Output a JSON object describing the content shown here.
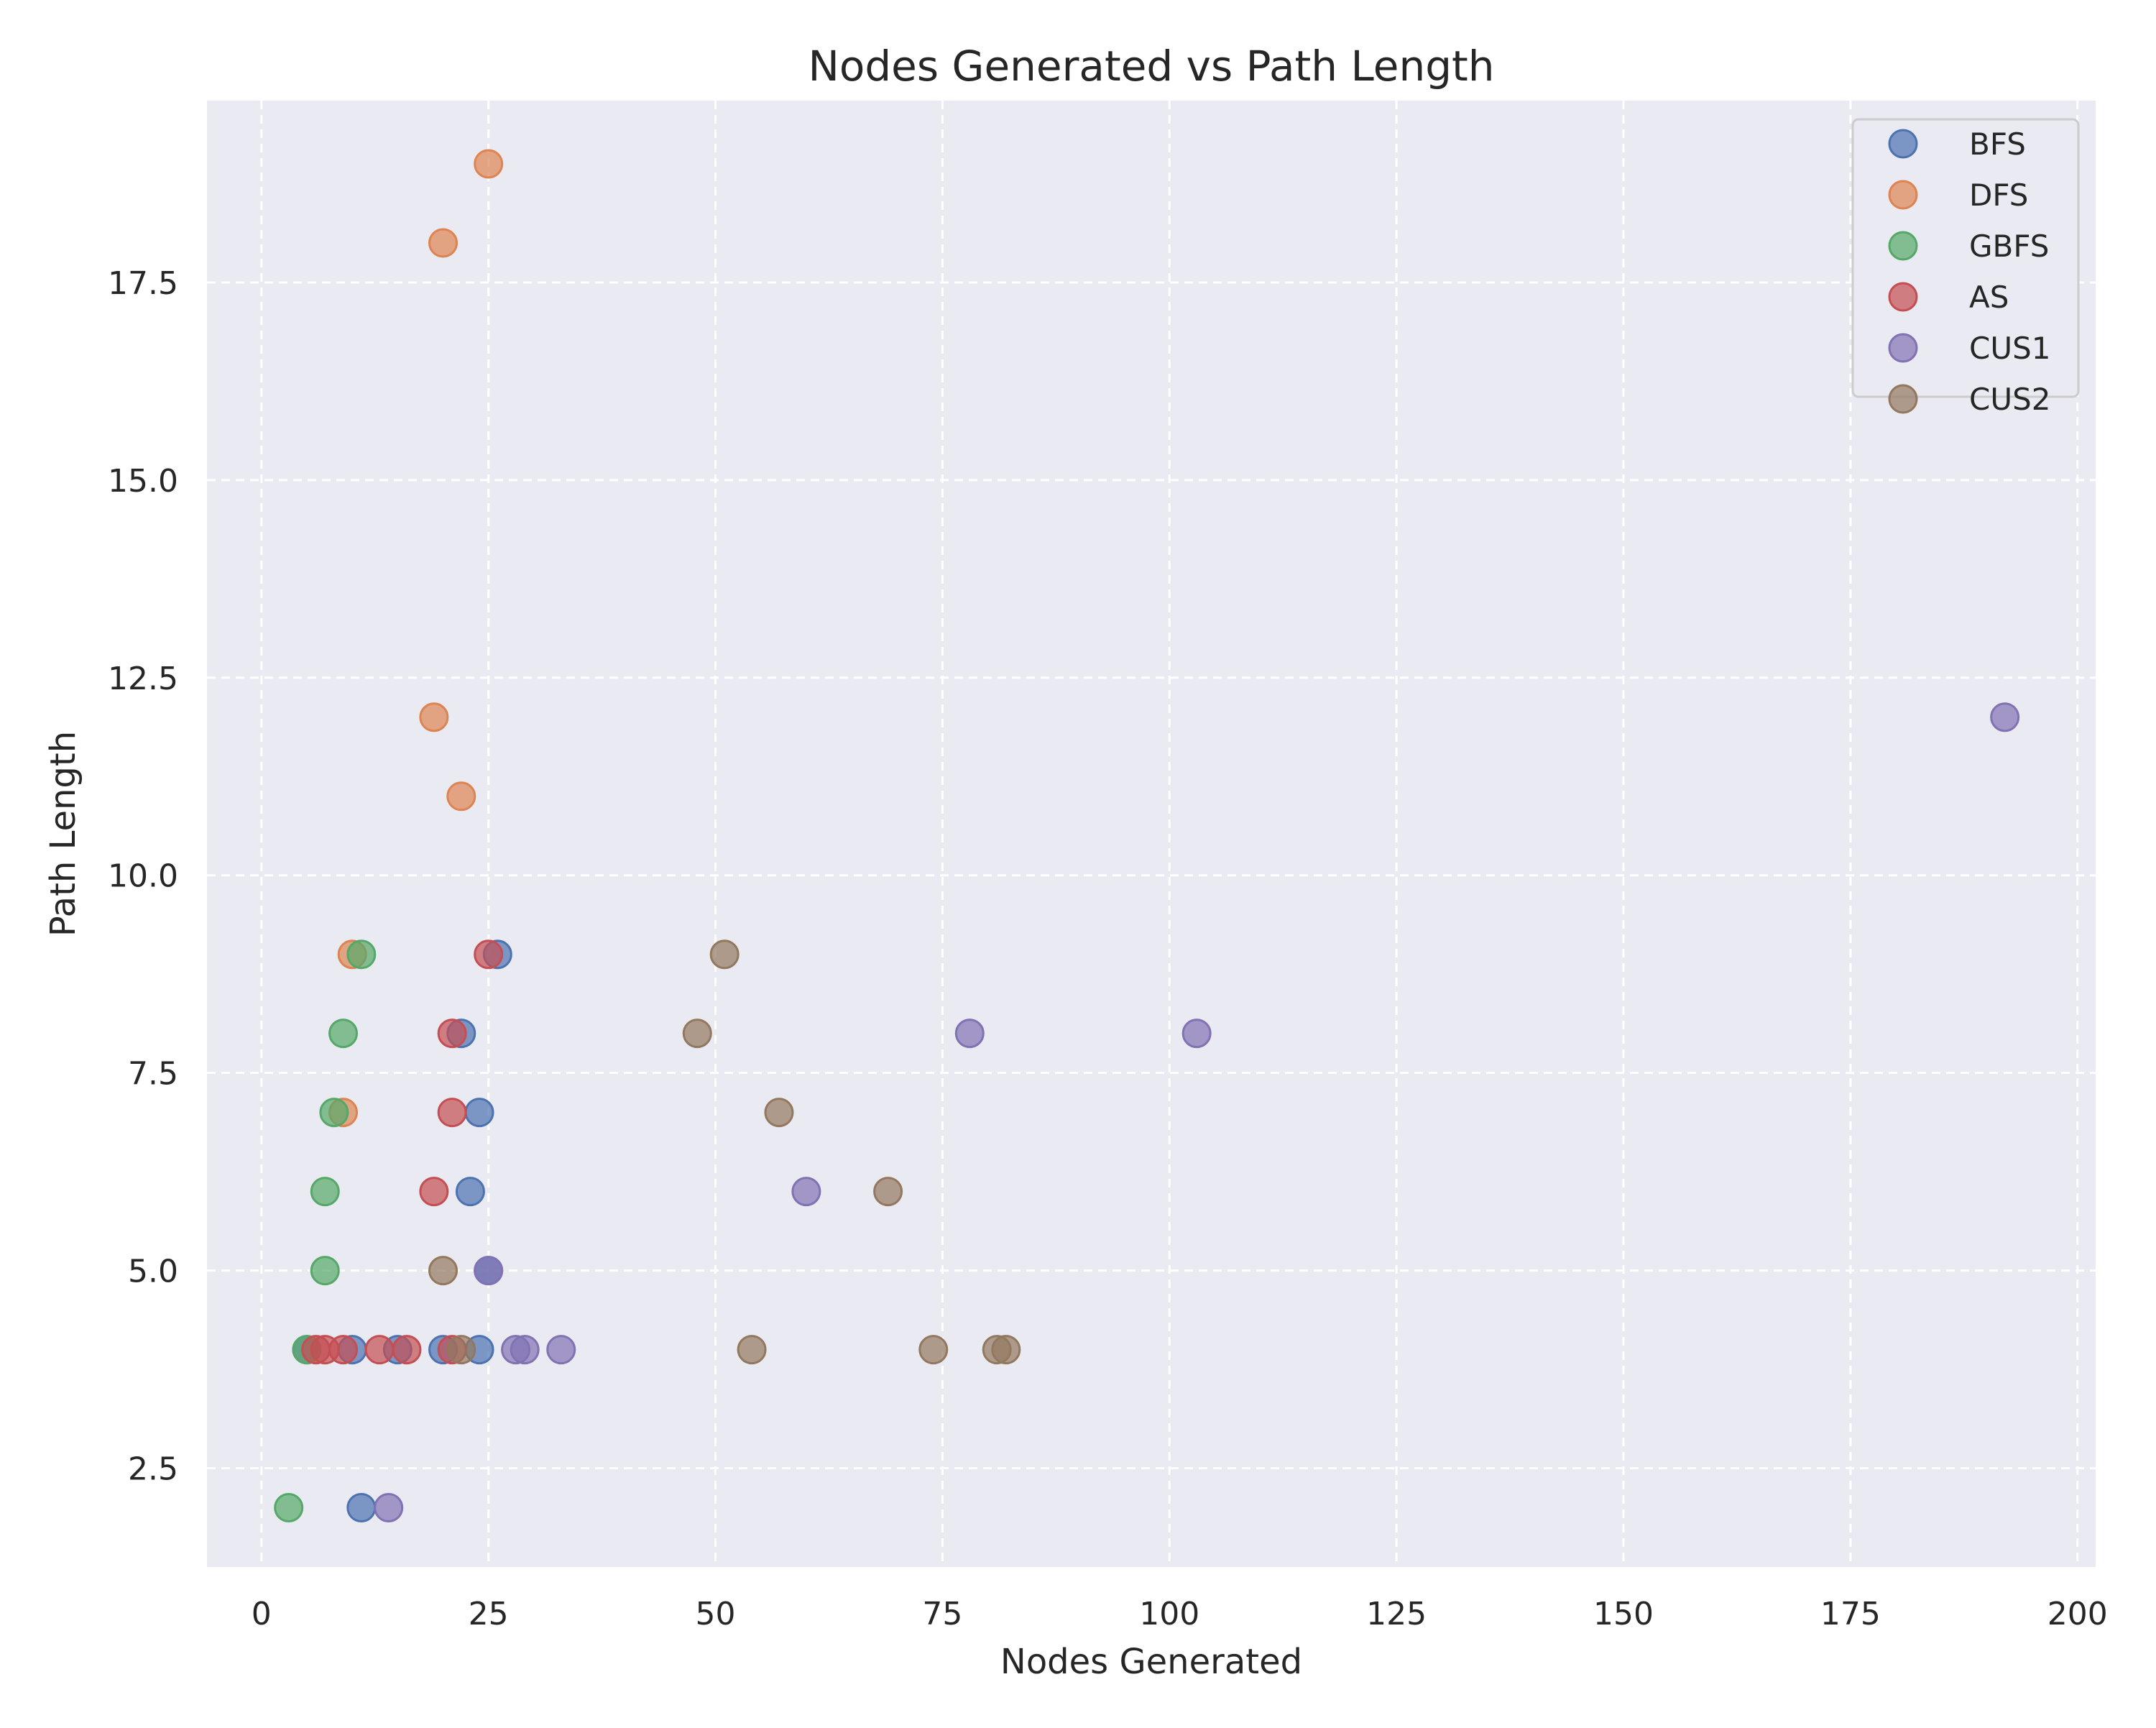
{
  "chart_data": {
    "type": "scatter",
    "title": "Nodes Generated vs Path Length",
    "xlabel": "Nodes Generated",
    "ylabel": "Path Length",
    "xlim": [
      -6,
      202
    ],
    "ylim": [
      1.25,
      19.8
    ],
    "xticks": [
      0,
      25,
      50,
      75,
      100,
      125,
      150,
      175,
      200
    ],
    "yticks": [
      2.5,
      5.0,
      7.5,
      10.0,
      12.5,
      15.0,
      17.5
    ],
    "xtick_labels": [
      "0",
      "25",
      "50",
      "75",
      "100",
      "125",
      "150",
      "175",
      "200"
    ],
    "ytick_labels": [
      "2.5",
      "5.0",
      "7.5",
      "10.0",
      "12.5",
      "15.0",
      "17.5"
    ],
    "grid": true,
    "legend_position": "top-right",
    "series": [
      {
        "name": "BFS",
        "color": "#4C72B0",
        "points": [
          [
            11,
            2
          ],
          [
            5,
            4
          ],
          [
            10,
            4
          ],
          [
            15,
            4
          ],
          [
            20,
            4
          ],
          [
            24,
            4
          ],
          [
            25,
            5
          ],
          [
            23,
            6
          ],
          [
            24,
            7
          ],
          [
            22,
            8
          ],
          [
            26,
            9
          ]
        ]
      },
      {
        "name": "DFS",
        "color": "#DD8452",
        "points": [
          [
            9,
            7
          ],
          [
            10,
            9
          ],
          [
            19,
            12
          ],
          [
            22,
            11
          ],
          [
            20,
            18
          ],
          [
            25,
            19
          ]
        ]
      },
      {
        "name": "GBFS",
        "color": "#55A868",
        "points": [
          [
            3,
            2
          ],
          [
            5,
            4
          ],
          [
            7,
            5
          ],
          [
            7,
            6
          ],
          [
            8,
            7
          ],
          [
            9,
            8
          ],
          [
            11,
            9
          ]
        ]
      },
      {
        "name": "AS",
        "color": "#C44E52",
        "points": [
          [
            6,
            4
          ],
          [
            7,
            4
          ],
          [
            9,
            4
          ],
          [
            13,
            4
          ],
          [
            16,
            4
          ],
          [
            21,
            4
          ],
          [
            19,
            6
          ],
          [
            21,
            7
          ],
          [
            21,
            8
          ],
          [
            25,
            9
          ]
        ]
      },
      {
        "name": "CUS1",
        "color": "#8172B3",
        "points": [
          [
            14,
            2
          ],
          [
            28,
            4
          ],
          [
            29,
            4
          ],
          [
            33,
            4
          ],
          [
            25,
            5
          ],
          [
            60,
            6
          ],
          [
            78,
            8
          ],
          [
            103,
            8
          ],
          [
            192,
            12
          ]
        ]
      },
      {
        "name": "CUS2",
        "color": "#937860",
        "points": [
          [
            22,
            4
          ],
          [
            54,
            4
          ],
          [
            74,
            4
          ],
          [
            81,
            4
          ],
          [
            82,
            4
          ],
          [
            20,
            5
          ],
          [
            57,
            7
          ],
          [
            69,
            6
          ],
          [
            48,
            8
          ],
          [
            51,
            9
          ]
        ]
      }
    ]
  }
}
